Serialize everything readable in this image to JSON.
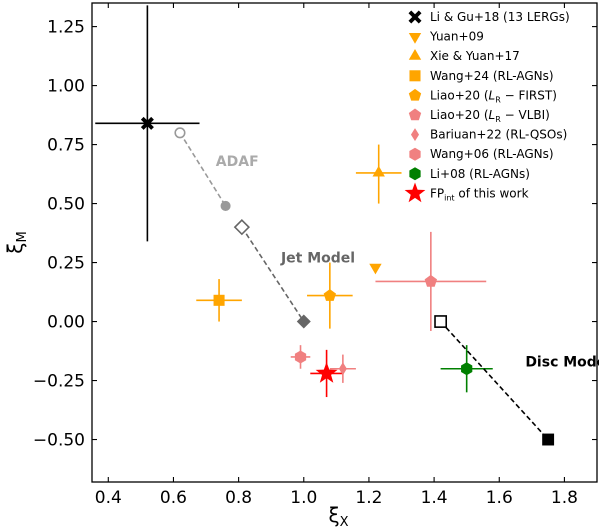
{
  "chart_data": {
    "type": "scatter",
    "xlabel": "ξ",
    "xlabel_sub": "X",
    "ylabel": "ξ",
    "ylabel_sub": "M",
    "xlim": [
      0.35,
      1.9
    ],
    "ylim": [
      -0.68,
      1.35
    ],
    "x_ticks": [
      0.4,
      0.6,
      0.8,
      1.0,
      1.2,
      1.4,
      1.6,
      1.8
    ],
    "x_tick_labels": [
      "0.4",
      "0.6",
      "0.8",
      "1.0",
      "1.2",
      "1.4",
      "1.6",
      "1.8"
    ],
    "y_ticks": [
      -0.5,
      -0.25,
      0.0,
      0.25,
      0.5,
      0.75,
      1.0,
      1.25
    ],
    "y_tick_labels": [
      "−0.50",
      "−0.25",
      "0.00",
      "0.25",
      "0.50",
      "0.75",
      "1.00",
      "1.25"
    ],
    "grid": false,
    "legend_position": "top-right",
    "legend": [
      {
        "pre": "Li & Gu+18 (13 LERGs)",
        "sub": "",
        "post": "",
        "marker": "X",
        "color": "#000000"
      },
      {
        "pre": "Yuan+09",
        "sub": "",
        "post": "",
        "marker": "tri-down",
        "color": "#FFA500"
      },
      {
        "pre": "Xie & Yuan+17",
        "sub": "",
        "post": "",
        "marker": "tri-up",
        "color": "#FFA500"
      },
      {
        "pre": "Wang+24 (RL-AGNs)",
        "sub": "",
        "post": "",
        "marker": "square",
        "color": "#FFA500"
      },
      {
        "pre": "Liao+20 (",
        "sub": "R",
        "post": " − FIRST)",
        "italic": "L",
        "marker": "pentagon",
        "color": "#FFA500"
      },
      {
        "pre": "Liao+20 (",
        "sub": "R",
        "post": " − VLBI)",
        "italic": "L",
        "marker": "pentagon",
        "color": "#F08080"
      },
      {
        "pre": "Bariuan+22 (RL-QSOs)",
        "sub": "",
        "post": "",
        "marker": "diamond",
        "color": "#F08080"
      },
      {
        "pre": "Wang+06 (RL-AGNs)",
        "sub": "",
        "post": "",
        "marker": "hexagon",
        "color": "#F08080"
      },
      {
        "pre": "Li+08 (RL-AGNs)",
        "sub": "",
        "post": "",
        "marker": "hexagon",
        "color": "#008000"
      },
      {
        "pre": "FP",
        "sub": "int",
        "post": " of this work",
        "marker": "star",
        "color": "#FF0000"
      }
    ],
    "series": [
      {
        "name": "Li & Gu+18 (13 LERGs)",
        "marker": "X",
        "color": "#000000",
        "x": 0.52,
        "y": 0.84,
        "xerr": [
          0.16,
          0.16
        ],
        "yerr": [
          0.5,
          0.5
        ]
      },
      {
        "name": "Yuan+09",
        "marker": "tri-down",
        "color": "#FFA500",
        "x": 1.22,
        "y": 0.23
      },
      {
        "name": "Xie & Yuan+17",
        "marker": "tri-up",
        "color": "#FFA500",
        "x": 1.23,
        "y": 0.63,
        "xerr": [
          0.07,
          0.07
        ],
        "yerr": [
          0.13,
          0.12
        ]
      },
      {
        "name": "Wang+24 (RL-AGNs)",
        "marker": "square",
        "color": "#FFA500",
        "x": 0.74,
        "y": 0.09,
        "xerr": [
          0.07,
          0.07
        ],
        "yerr": [
          0.09,
          0.09
        ]
      },
      {
        "name": "Liao+20 (LR − FIRST)",
        "marker": "pentagon",
        "color": "#FFA500",
        "x": 1.08,
        "y": 0.11,
        "xerr": [
          0.07,
          0.07
        ],
        "yerr": [
          0.14,
          0.14
        ]
      },
      {
        "name": "Liao+20 (LR − VLBI)",
        "marker": "pentagon",
        "color": "#F08080",
        "x": 1.39,
        "y": 0.17,
        "xerr": [
          0.17,
          0.17
        ],
        "yerr": [
          0.21,
          0.21
        ]
      },
      {
        "name": "Bariuan+22 (RL-QSOs)",
        "marker": "diamond",
        "color": "#F08080",
        "x": 1.12,
        "y": -0.2,
        "xerr": [
          0.04,
          0.04
        ],
        "yerr": [
          0.06,
          0.06
        ]
      },
      {
        "name": "Wang+06 (RL-AGNs)",
        "marker": "hexagon",
        "color": "#F08080",
        "x": 0.99,
        "y": -0.15,
        "xerr": [
          0.03,
          0.03
        ],
        "yerr": [
          0.05,
          0.05
        ]
      },
      {
        "name": "Li+08 (RL-AGNs)",
        "marker": "hexagon",
        "color": "#008000",
        "x": 1.5,
        "y": -0.2,
        "xerr": [
          0.08,
          0.08
        ],
        "yerr": [
          0.1,
          0.1
        ]
      },
      {
        "name": "FP of this work",
        "marker": "star",
        "color": "#FF0000",
        "x": 1.07,
        "y": -0.22,
        "xerr": [
          0.05,
          0.05
        ],
        "yerr": [
          0.1,
          0.1
        ]
      }
    ],
    "models": [
      {
        "label": "ADAF",
        "color": "#999999",
        "label_color": "#AAAAAA",
        "line": [
          [
            0.62,
            0.8
          ],
          [
            0.76,
            0.49
          ]
        ],
        "points": [
          {
            "x": 0.62,
            "y": 0.8,
            "marker": "circle-open"
          },
          {
            "x": 0.76,
            "y": 0.49,
            "marker": "circle"
          }
        ],
        "label_at": [
          0.73,
          0.66
        ]
      },
      {
        "label": "Jet Model",
        "color": "#666666",
        "label_color": "#666666",
        "line": [
          [
            0.81,
            0.4
          ],
          [
            1.0,
            0.0
          ]
        ],
        "points": [
          {
            "x": 0.81,
            "y": 0.4,
            "marker": "diamond-open"
          },
          {
            "x": 1.0,
            "y": 0.0,
            "marker": "diamond"
          }
        ],
        "label_at": [
          0.93,
          0.25
        ]
      },
      {
        "label": "Disc Model",
        "color": "#000000",
        "label_color": "#000000",
        "line": [
          [
            1.42,
            0.0
          ],
          [
            1.75,
            -0.5
          ]
        ],
        "points": [
          {
            "x": 1.42,
            "y": 0.0,
            "marker": "square-open"
          },
          {
            "x": 1.75,
            "y": -0.5,
            "marker": "square"
          }
        ],
        "label_at": [
          1.68,
          -0.19
        ]
      }
    ]
  }
}
